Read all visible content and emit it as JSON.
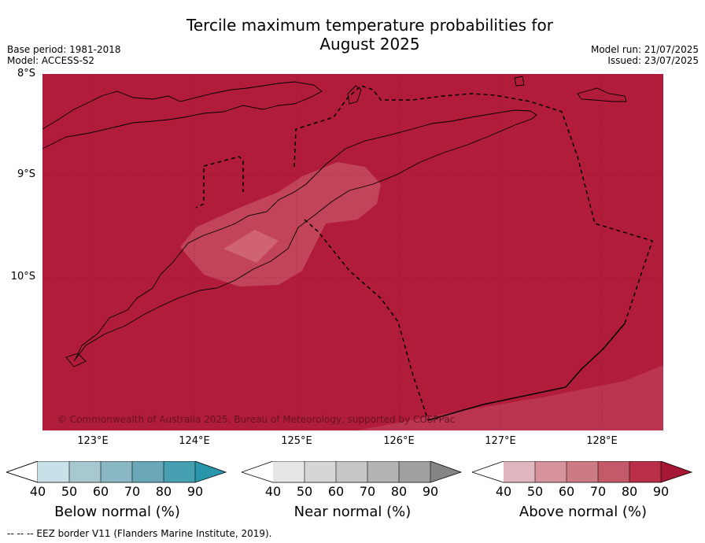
{
  "title_line1": "Tercile maximum temperature probabilities for",
  "title_line2": "August 2025",
  "meta_left": {
    "base_period": "Base period: 1981-2018",
    "model": "Model: ACCESS-S2"
  },
  "meta_right": {
    "model_run": "Model run: 21/07/2025",
    "issued": "Issued: 23/07/2025"
  },
  "map": {
    "lat_labels": [
      "8°S",
      "9°S",
      "10°S"
    ],
    "lon_labels": [
      "123°E",
      "124°E",
      "125°E",
      "126°E",
      "127°E",
      "128°E"
    ],
    "copyright": "© Commonwealth of Australia 2025, Bureau of Meteorology, supported by COSPPac",
    "colors": {
      "dominant": "#b11c3a",
      "lighter": "#c24458",
      "lightest": "#cf6370"
    }
  },
  "colorbars": [
    {
      "label": "Below normal (%)",
      "ticks": [
        "40",
        "50",
        "60",
        "70",
        "80",
        "90"
      ],
      "colors": [
        "#c8e0e7",
        "#a8c8cf",
        "#89b8c4",
        "#6aa8b8",
        "#47a0b1",
        "#2a96ab"
      ]
    },
    {
      "label": "Near normal (%)",
      "ticks": [
        "40",
        "50",
        "60",
        "70",
        "80",
        "90"
      ],
      "colors": [
        "#e6e6e6",
        "#d6d6d6",
        "#c6c6c6",
        "#b3b3b3",
        "#a0a0a0",
        "#858585"
      ]
    },
    {
      "label": "Above normal (%)",
      "ticks": [
        "40",
        "50",
        "60",
        "70",
        "80",
        "90"
      ],
      "colors": [
        "#e0b6bf",
        "#d7949f",
        "#cc7a83",
        "#c45a68",
        "#b92f48",
        "#a61735"
      ]
    }
  ],
  "footer": "--  --  -- EEZ border V11 (Flanders Marine Institute, 2019)."
}
